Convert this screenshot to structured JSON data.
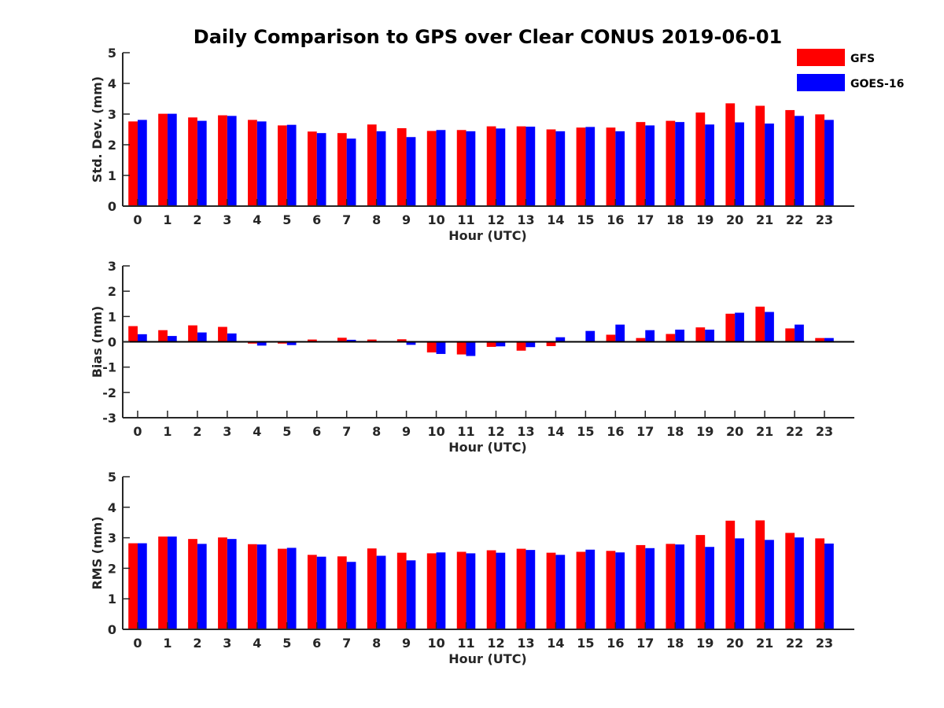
{
  "title": "Daily Comparison to GPS over Clear CONUS 2019-06-01",
  "legend": {
    "position": "top-right",
    "items": [
      {
        "name": "GFS",
        "color": "#ff0000"
      },
      {
        "name": "GOES-16",
        "color": "#0000ff"
      }
    ]
  },
  "chart_data": [
    {
      "type": "bar",
      "title": "Daily Comparison to GPS over Clear CONUS 2019-06-01",
      "xlabel": "Hour (UTC)",
      "ylabel": "Std. Dev. (mm)",
      "ylim": [
        0,
        5
      ],
      "yticks": [
        0,
        1,
        2,
        3,
        4,
        5
      ],
      "categories": [
        "0",
        "1",
        "2",
        "3",
        "4",
        "5",
        "6",
        "7",
        "8",
        "9",
        "10",
        "11",
        "12",
        "13",
        "14",
        "15",
        "16",
        "17",
        "18",
        "19",
        "20",
        "21",
        "22",
        "23"
      ],
      "series": [
        {
          "name": "GFS",
          "color": "#ff0000",
          "values": [
            2.76,
            3.01,
            2.89,
            2.96,
            2.81,
            2.63,
            2.43,
            2.38,
            2.66,
            2.54,
            2.45,
            2.48,
            2.6,
            2.6,
            2.5,
            2.56,
            2.56,
            2.74,
            2.78,
            3.05,
            3.35,
            3.27,
            3.13,
            2.99
          ]
        },
        {
          "name": "GOES-16",
          "color": "#0000ff",
          "values": [
            2.81,
            3.01,
            2.78,
            2.94,
            2.76,
            2.65,
            2.38,
            2.2,
            2.44,
            2.25,
            2.48,
            2.44,
            2.53,
            2.59,
            2.44,
            2.58,
            2.44,
            2.63,
            2.74,
            2.66,
            2.73,
            2.69,
            2.94,
            2.81
          ]
        }
      ]
    },
    {
      "type": "bar",
      "xlabel": "Hour (UTC)",
      "ylabel": "Bias (mm)",
      "ylim": [
        -3,
        3
      ],
      "yticks": [
        -3,
        -2,
        -1,
        0,
        1,
        2,
        3
      ],
      "categories": [
        "0",
        "1",
        "2",
        "3",
        "4",
        "5",
        "6",
        "7",
        "8",
        "9",
        "10",
        "11",
        "12",
        "13",
        "14",
        "15",
        "16",
        "17",
        "18",
        "19",
        "20",
        "21",
        "22",
        "23"
      ],
      "series": [
        {
          "name": "GFS",
          "color": "#ff0000",
          "values": [
            0.62,
            0.46,
            0.65,
            0.59,
            -0.07,
            -0.07,
            0.09,
            0.16,
            0.09,
            0.1,
            -0.42,
            -0.5,
            -0.2,
            -0.35,
            -0.17,
            0.0,
            0.28,
            0.15,
            0.31,
            0.57,
            1.11,
            1.39,
            0.53,
            0.15
          ]
        },
        {
          "name": "GOES-16",
          "color": "#0000ff",
          "values": [
            0.3,
            0.23,
            0.37,
            0.33,
            -0.15,
            -0.13,
            0.03,
            0.08,
            0.0,
            -0.12,
            -0.48,
            -0.56,
            -0.18,
            -0.21,
            0.18,
            0.43,
            0.68,
            0.46,
            0.48,
            0.48,
            1.15,
            1.18,
            0.68,
            0.15
          ]
        }
      ]
    },
    {
      "type": "bar",
      "xlabel": "Hour (UTC)",
      "ylabel": "RMS (mm)",
      "ylim": [
        0,
        5
      ],
      "yticks": [
        0,
        1,
        2,
        3,
        4,
        5
      ],
      "categories": [
        "0",
        "1",
        "2",
        "3",
        "4",
        "5",
        "6",
        "7",
        "8",
        "9",
        "10",
        "11",
        "12",
        "13",
        "14",
        "15",
        "16",
        "17",
        "18",
        "19",
        "20",
        "21",
        "22",
        "23"
      ],
      "series": [
        {
          "name": "GFS",
          "color": "#ff0000",
          "values": [
            2.82,
            3.04,
            2.96,
            3.01,
            2.79,
            2.64,
            2.44,
            2.39,
            2.65,
            2.51,
            2.49,
            2.54,
            2.59,
            2.64,
            2.51,
            2.54,
            2.57,
            2.76,
            2.8,
            3.09,
            3.56,
            3.57,
            3.16,
            2.98
          ]
        },
        {
          "name": "GOES-16",
          "color": "#0000ff",
          "values": [
            2.82,
            3.04,
            2.8,
            2.96,
            2.78,
            2.67,
            2.38,
            2.21,
            2.41,
            2.26,
            2.52,
            2.49,
            2.51,
            2.6,
            2.44,
            2.61,
            2.52,
            2.66,
            2.78,
            2.7,
            2.98,
            2.93,
            3.01,
            2.81
          ]
        }
      ]
    }
  ]
}
